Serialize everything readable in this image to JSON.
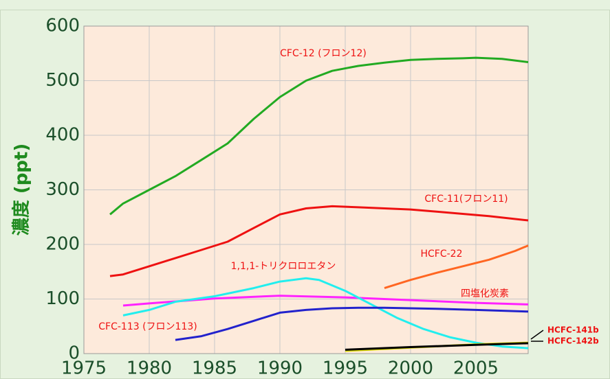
{
  "chart_data": {
    "type": "line",
    "ylabel": "濃度 (ppt)",
    "xlim": [
      1975,
      2009
    ],
    "xticks": [
      1975,
      1980,
      1985,
      1990,
      1995,
      2000,
      2005
    ],
    "ylim": [
      0,
      600
    ],
    "yticks": [
      0,
      100,
      200,
      300,
      400,
      500,
      600
    ],
    "grid": true,
    "series": [
      {
        "name": "CFC-12 (フロン12)",
        "color": "#22aa22",
        "x": [
          1977,
          1978,
          1980,
          1982,
          1984,
          1986,
          1988,
          1990,
          1992,
          1994,
          1996,
          1998,
          2000,
          2002,
          2004,
          2005,
          2007,
          2009
        ],
        "values": [
          255,
          275,
          300,
          325,
          355,
          385,
          430,
          470,
          500,
          518,
          527,
          533,
          538,
          540,
          541,
          542,
          540,
          534
        ]
      },
      {
        "name": "CFC-11(フロン11)",
        "color": "#ee1111",
        "x": [
          1977,
          1978,
          1980,
          1982,
          1984,
          1986,
          1988,
          1990,
          1992,
          1994,
          1996,
          1998,
          2000,
          2002,
          2004,
          2006,
          2009
        ],
        "values": [
          142,
          145,
          160,
          175,
          190,
          205,
          230,
          255,
          266,
          270,
          268,
          266,
          264,
          260,
          256,
          252,
          244
        ]
      },
      {
        "name": "HCFC-22",
        "color": "#ff6622",
        "x": [
          1998,
          2000,
          2002,
          2004,
          2006,
          2008,
          2009
        ],
        "values": [
          120,
          135,
          148,
          160,
          172,
          188,
          198
        ]
      },
      {
        "name": "四塩化炭素",
        "color": "#ff22ff",
        "x": [
          1978,
          1980,
          1985,
          1990,
          1995,
          2000,
          2005,
          2009
        ],
        "values": [
          88,
          92,
          101,
          106,
          103,
          98,
          93,
          90
        ]
      },
      {
        "name": "1,1,1-トリクロロエタン",
        "color": "#22eeee",
        "x": [
          1978,
          1980,
          1982,
          1985,
          1988,
          1990,
          1992,
          1993,
          1995,
          1997,
          1999,
          2001,
          2003,
          2005,
          2007,
          2009
        ],
        "values": [
          70,
          80,
          95,
          105,
          120,
          132,
          138,
          135,
          115,
          90,
          65,
          45,
          30,
          20,
          13,
          10
        ]
      },
      {
        "name": "CFC-113 (フロン113)",
        "color": "#2222cc",
        "x": [
          1982,
          1984,
          1986,
          1988,
          1990,
          1992,
          1994,
          1996,
          1998,
          2000,
          2002,
          2005,
          2009
        ],
        "values": [
          25,
          32,
          45,
          60,
          75,
          80,
          83,
          84,
          84,
          83,
          82,
          80,
          77
        ]
      },
      {
        "name": "HCFC-141b",
        "color": "#dddd00",
        "x": [
          1995,
          2000,
          2005,
          2009
        ],
        "values": [
          5,
          11,
          17,
          20
        ]
      },
      {
        "name": "HCFC-142b",
        "color": "#000000",
        "x": [
          1995,
          2000,
          2005,
          2009
        ],
        "values": [
          7,
          12,
          16,
          19
        ]
      }
    ]
  }
}
